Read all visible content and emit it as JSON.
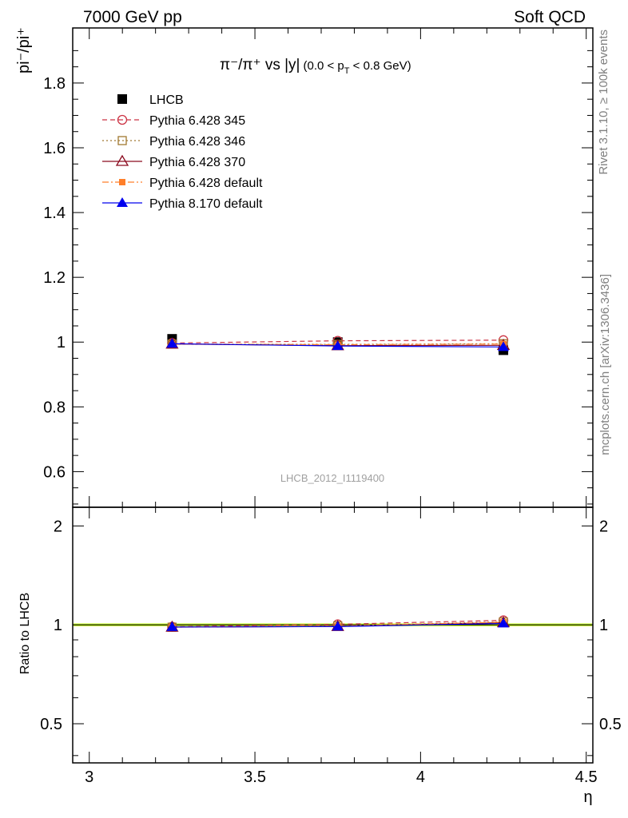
{
  "header": {
    "left": "7000 GeV pp",
    "right": "Soft QCD"
  },
  "side_labels": {
    "rivet": "Rivet 3.1.10, ≥ 100k events",
    "mcplots": "mcplots.cern.ch [arXiv:1306.3436]"
  },
  "colors": {
    "LHCB": "#000000",
    "Pythia 6.428 345": "#cc3344",
    "Pythia 6.428 346": "#a07830",
    "Pythia 6.428 370": "#8b0a1e",
    "Pythia 6.428 default": "#ff7f2a",
    "Pythia 8.170 default": "#0000ee",
    "band": "#ccff33"
  },
  "chart_data": [
    {
      "type": "scatter",
      "title_parts": {
        "main": "π⁻/π⁺ vs |y|",
        "sub": "(0.0 < p",
        "sub_index": "T",
        "sub_end": " < 0.8 GeV)"
      },
      "ylabel": "pi⁻/pi⁺",
      "watermark": "LHCB_2012_I1119400",
      "xlim": [
        2.95,
        4.52
      ],
      "ylim": [
        0.49,
        1.97
      ],
      "yticks": [
        0.6,
        0.8,
        1,
        1.2,
        1.4,
        1.6,
        1.8
      ],
      "ytick_labels": [
        "0.6",
        "0.8",
        "1",
        "1.2",
        "1.4",
        "1.6",
        "1.8"
      ],
      "legend_position": "top-left",
      "x": [
        3.25,
        3.75,
        4.25
      ],
      "series": [
        {
          "name": "LHCB",
          "values": [
            1.01,
            1.0,
            0.975
          ],
          "marker": "square-filled",
          "line": "none"
        },
        {
          "name": "Pythia 6.428 345",
          "values": [
            0.997,
            1.004,
            1.006
          ],
          "marker": "circle-open",
          "line": "dashed"
        },
        {
          "name": "Pythia 6.428 346",
          "values": [
            0.994,
            0.993,
            0.995
          ],
          "marker": "square-open",
          "line": "dotted"
        },
        {
          "name": "Pythia 6.428 370",
          "values": [
            0.994,
            0.989,
            0.99
          ],
          "marker": "triangle-open",
          "line": "solid"
        },
        {
          "name": "Pythia 6.428 default",
          "values": [
            0.994,
            0.992,
            0.994
          ],
          "marker": "square-small",
          "line": "dashdot"
        },
        {
          "name": "Pythia 8.170 default",
          "values": [
            0.995,
            0.988,
            0.985
          ],
          "marker": "triangle-filled",
          "line": "solid"
        }
      ]
    },
    {
      "type": "scatter",
      "ylabel": "Ratio to LHCB",
      "xlabel": "η",
      "xlim": [
        2.95,
        4.52
      ],
      "ylim": [
        0.38,
        2.28
      ],
      "log_y": true,
      "yticks": [
        0.5,
        1,
        2
      ],
      "ytick_labels": [
        "0.5",
        "1",
        "2"
      ],
      "xticks": [
        3,
        3.5,
        4,
        4.5
      ],
      "xtick_labels": [
        "3",
        "3.5",
        "4",
        "4.5"
      ],
      "x": [
        3.25,
        3.75,
        4.25
      ],
      "series": [
        {
          "name": "Pythia 6.428 345",
          "values": [
            0.987,
            1.004,
            1.032
          ]
        },
        {
          "name": "Pythia 6.428 346",
          "values": [
            0.984,
            0.993,
            1.021
          ]
        },
        {
          "name": "Pythia 6.428 370",
          "values": [
            0.984,
            0.989,
            1.015
          ]
        },
        {
          "name": "Pythia 6.428 default",
          "values": [
            0.984,
            0.992,
            1.019
          ]
        },
        {
          "name": "Pythia 8.170 default",
          "values": [
            0.985,
            0.988,
            1.01
          ]
        }
      ]
    }
  ]
}
